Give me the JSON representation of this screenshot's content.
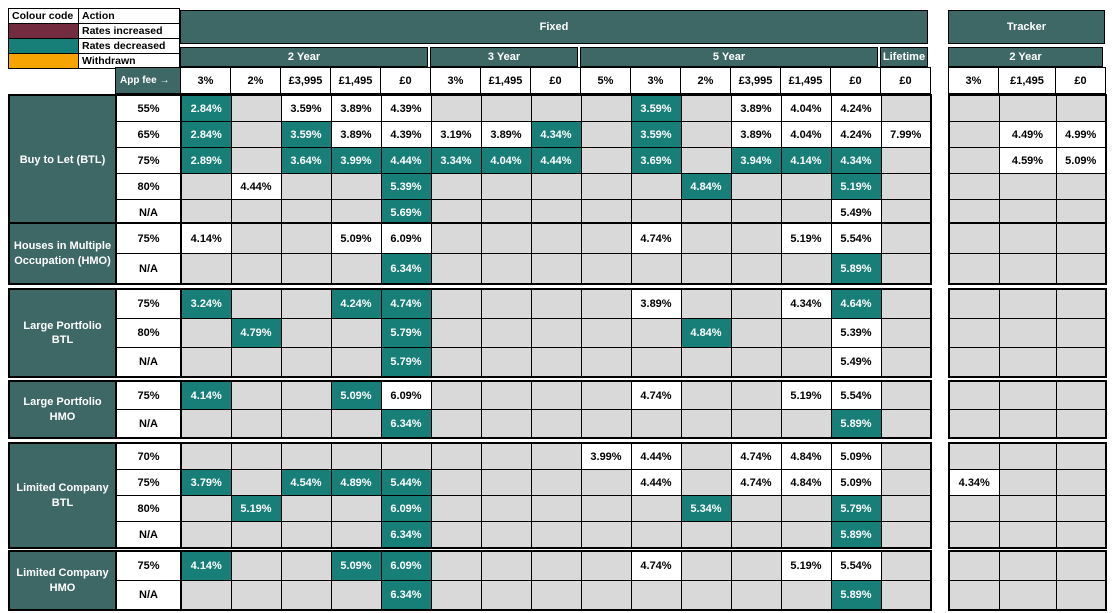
{
  "colors": {
    "rates_increased": "#722b3f",
    "rates_decreased": "#177e78",
    "withdrawn": "#f5a402",
    "header_teal": "#3e6865",
    "empty_cell": "#d9d9d9"
  },
  "legend": {
    "header": [
      "Colour code",
      "Action"
    ],
    "rows": [
      {
        "color_key": "rates_increased",
        "label": "Rates increased"
      },
      {
        "color_key": "rates_decreased",
        "label": "Rates decreased"
      },
      {
        "color_key": "withdrawn",
        "label": "Withdrawn"
      }
    ]
  },
  "header": {
    "fixed_label": "Fixed",
    "tracker_label": "Tracker",
    "app_fee_label": "App fee →",
    "fixed_terms": [
      {
        "label": "2 Year",
        "fees": [
          "3%",
          "2%",
          "£3,995",
          "£1,495",
          "£0"
        ]
      },
      {
        "label": "3 Year",
        "fees": [
          "3%",
          "£1,495",
          "£0"
        ]
      },
      {
        "label": "5 Year",
        "fees": [
          "5%",
          "3%",
          "2%",
          "£3,995",
          "£1,495",
          "£0"
        ]
      },
      {
        "label": "Lifetime",
        "fees": [
          "£0"
        ]
      }
    ],
    "tracker_terms": [
      {
        "label": "2 Year",
        "fees": [
          "3%",
          "£1,495",
          "£0"
        ]
      }
    ]
  },
  "sections": [
    {
      "label": "Buy to Let (BTL)",
      "rows": [
        {
          "ltv": "55%",
          "fixed": [
            {
              "v": "2.84%",
              "hl": true
            },
            null,
            {
              "v": "3.59%"
            },
            {
              "v": "3.89%"
            },
            {
              "v": "4.39%"
            },
            null,
            null,
            null,
            null,
            {
              "v": "3.59%",
              "hl": true
            },
            null,
            {
              "v": "3.89%"
            },
            {
              "v": "4.04%"
            },
            {
              "v": "4.24%"
            },
            null
          ],
          "tracker": [
            null,
            null,
            null
          ]
        },
        {
          "ltv": "65%",
          "fixed": [
            {
              "v": "2.84%",
              "hl": true
            },
            null,
            {
              "v": "3.59%",
              "hl": true
            },
            {
              "v": "3.89%"
            },
            {
              "v": "4.39%"
            },
            {
              "v": "3.19%"
            },
            {
              "v": "3.89%"
            },
            {
              "v": "4.34%",
              "hl": true
            },
            null,
            {
              "v": "3.59%",
              "hl": true
            },
            null,
            {
              "v": "3.89%"
            },
            {
              "v": "4.04%"
            },
            {
              "v": "4.24%"
            },
            {
              "v": "7.99%"
            }
          ],
          "tracker": [
            null,
            {
              "v": "4.49%"
            },
            {
              "v": "4.99%"
            }
          ]
        },
        {
          "ltv": "75%",
          "fixed": [
            {
              "v": "2.89%",
              "hl": true
            },
            null,
            {
              "v": "3.64%",
              "hl": true
            },
            {
              "v": "3.99%",
              "hl": true
            },
            {
              "v": "4.44%",
              "hl": true
            },
            {
              "v": "3.34%",
              "hl": true
            },
            {
              "v": "4.04%",
              "hl": true
            },
            {
              "v": "4.44%",
              "hl": true
            },
            null,
            {
              "v": "3.69%",
              "hl": true
            },
            null,
            {
              "v": "3.94%",
              "hl": true
            },
            {
              "v": "4.14%",
              "hl": true
            },
            {
              "v": "4.34%",
              "hl": true
            },
            null
          ],
          "tracker": [
            null,
            {
              "v": "4.59%"
            },
            {
              "v": "5.09%"
            }
          ]
        },
        {
          "ltv": "80%",
          "fixed": [
            null,
            {
              "v": "4.44%"
            },
            null,
            null,
            {
              "v": "5.39%",
              "hl": true
            },
            null,
            null,
            null,
            null,
            null,
            {
              "v": "4.84%",
              "hl": true
            },
            null,
            null,
            {
              "v": "5.19%",
              "hl": true
            },
            null
          ],
          "tracker": [
            null,
            null,
            null
          ]
        },
        {
          "ltv": "N/A",
          "fixed": [
            null,
            null,
            null,
            null,
            {
              "v": "5.69%",
              "hl": true
            },
            null,
            null,
            null,
            null,
            null,
            null,
            null,
            null,
            {
              "v": "5.49%"
            },
            null
          ],
          "tracker": [
            null,
            null,
            null
          ]
        }
      ]
    },
    {
      "label": "Houses in Multiple Occupation (HMO)",
      "rows": [
        {
          "ltv": "75%",
          "fixed": [
            {
              "v": "4.14%"
            },
            null,
            null,
            {
              "v": "5.09%"
            },
            {
              "v": "6.09%"
            },
            null,
            null,
            null,
            null,
            {
              "v": "4.74%"
            },
            null,
            null,
            {
              "v": "5.19%"
            },
            {
              "v": "5.54%"
            },
            null
          ],
          "tracker": [
            null,
            null,
            null
          ]
        },
        {
          "ltv": "N/A",
          "fixed": [
            null,
            null,
            null,
            null,
            {
              "v": "6.34%",
              "hl": true
            },
            null,
            null,
            null,
            null,
            null,
            null,
            null,
            null,
            {
              "v": "5.89%",
              "hl": true
            },
            null
          ],
          "tracker": [
            null,
            null,
            null
          ]
        }
      ]
    },
    {
      "label": "Large Portfolio BTL",
      "rows": [
        {
          "ltv": "75%",
          "fixed": [
            {
              "v": "3.24%",
              "hl": true
            },
            null,
            null,
            {
              "v": "4.24%",
              "hl": true
            },
            {
              "v": "4.74%",
              "hl": true
            },
            null,
            null,
            null,
            null,
            {
              "v": "3.89%"
            },
            null,
            null,
            {
              "v": "4.34%"
            },
            {
              "v": "4.64%",
              "hl": true
            },
            null
          ],
          "tracker": [
            null,
            null,
            null
          ]
        },
        {
          "ltv": "80%",
          "fixed": [
            null,
            {
              "v": "4.79%",
              "hl": true
            },
            null,
            null,
            {
              "v": "5.79%",
              "hl": true
            },
            null,
            null,
            null,
            null,
            null,
            {
              "v": "4.84%",
              "hl": true
            },
            null,
            null,
            {
              "v": "5.39%"
            },
            null
          ],
          "tracker": [
            null,
            null,
            null
          ]
        },
        {
          "ltv": "N/A",
          "fixed": [
            null,
            null,
            null,
            null,
            {
              "v": "5.79%",
              "hl": true
            },
            null,
            null,
            null,
            null,
            null,
            null,
            null,
            null,
            {
              "v": "5.49%"
            },
            null
          ],
          "tracker": [
            null,
            null,
            null
          ]
        }
      ]
    },
    {
      "label": "Large Portfolio HMO",
      "rows": [
        {
          "ltv": "75%",
          "fixed": [
            {
              "v": "4.14%",
              "hl": true
            },
            null,
            null,
            {
              "v": "5.09%",
              "hl": true
            },
            {
              "v": "6.09%"
            },
            null,
            null,
            null,
            null,
            {
              "v": "4.74%"
            },
            null,
            null,
            {
              "v": "5.19%"
            },
            {
              "v": "5.54%"
            },
            null
          ],
          "tracker": [
            null,
            null,
            null
          ]
        },
        {
          "ltv": "N/A",
          "fixed": [
            null,
            null,
            null,
            null,
            {
              "v": "6.34%",
              "hl": true
            },
            null,
            null,
            null,
            null,
            null,
            null,
            null,
            null,
            {
              "v": "5.89%",
              "hl": true
            },
            null
          ],
          "tracker": [
            null,
            null,
            null
          ]
        }
      ]
    },
    {
      "label": "Limited Company BTL",
      "rows": [
        {
          "ltv": "70%",
          "fixed": [
            null,
            null,
            null,
            null,
            null,
            null,
            null,
            null,
            {
              "v": "3.99%"
            },
            {
              "v": "4.44%"
            },
            null,
            {
              "v": "4.74%"
            },
            {
              "v": "4.84%"
            },
            {
              "v": "5.09%"
            },
            null
          ],
          "tracker": [
            null,
            null,
            null
          ]
        },
        {
          "ltv": "75%",
          "fixed": [
            {
              "v": "3.79%",
              "hl": true
            },
            null,
            {
              "v": "4.54%",
              "hl": true
            },
            {
              "v": "4.89%",
              "hl": true
            },
            {
              "v": "5.44%",
              "hl": true
            },
            null,
            null,
            null,
            null,
            {
              "v": "4.44%"
            },
            null,
            {
              "v": "4.74%"
            },
            {
              "v": "4.84%"
            },
            {
              "v": "5.09%"
            },
            null
          ],
          "tracker": [
            {
              "v": "4.34%"
            },
            null,
            null
          ]
        },
        {
          "ltv": "80%",
          "fixed": [
            null,
            {
              "v": "5.19%",
              "hl": true
            },
            null,
            null,
            {
              "v": "6.09%",
              "hl": true
            },
            null,
            null,
            null,
            null,
            null,
            {
              "v": "5.34%",
              "hl": true
            },
            null,
            null,
            {
              "v": "5.79%",
              "hl": true
            },
            null
          ],
          "tracker": [
            null,
            null,
            null
          ]
        },
        {
          "ltv": "N/A",
          "fixed": [
            null,
            null,
            null,
            null,
            {
              "v": "6.34%",
              "hl": true
            },
            null,
            null,
            null,
            null,
            null,
            null,
            null,
            null,
            {
              "v": "5.89%",
              "hl": true
            },
            null
          ],
          "tracker": [
            null,
            null,
            null
          ]
        }
      ]
    },
    {
      "label": "Limited Company HMO",
      "rows": [
        {
          "ltv": "75%",
          "fixed": [
            {
              "v": "4.14%",
              "hl": true
            },
            null,
            null,
            {
              "v": "5.09%",
              "hl": true
            },
            {
              "v": "6.09%",
              "hl": true
            },
            null,
            null,
            null,
            null,
            {
              "v": "4.74%"
            },
            null,
            null,
            {
              "v": "5.19%"
            },
            {
              "v": "5.54%"
            },
            null
          ],
          "tracker": [
            null,
            null,
            null
          ]
        },
        {
          "ltv": "N/A",
          "fixed": [
            null,
            null,
            null,
            null,
            {
              "v": "6.34%",
              "hl": true
            },
            null,
            null,
            null,
            null,
            null,
            null,
            null,
            null,
            {
              "v": "5.89%",
              "hl": true
            },
            null
          ],
          "tracker": [
            null,
            null,
            null
          ]
        }
      ]
    }
  ]
}
